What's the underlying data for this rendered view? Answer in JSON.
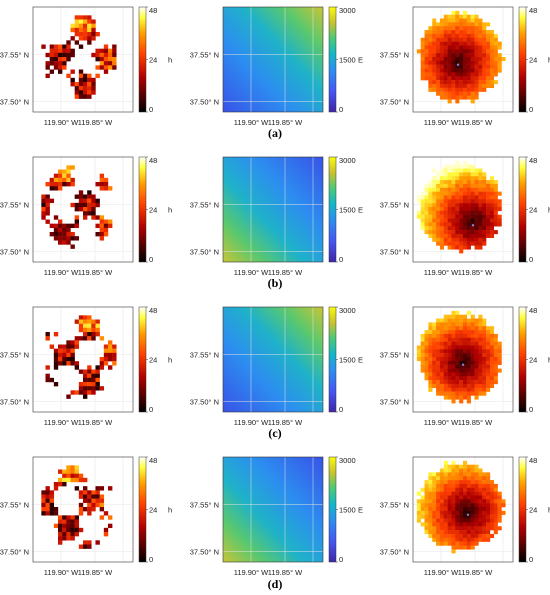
{
  "figure": {
    "captions": [
      "(a)",
      "(b)",
      "(c)",
      "(d)"
    ]
  },
  "chart_data": [
    {
      "type": "heatmap",
      "row": "a",
      "panel": "fire-arrival-map",
      "x_ticks": [
        "119.90° W",
        "119.85° W"
      ],
      "y_ticks": [
        "37.55° N",
        "37.50° N"
      ],
      "colorbar": {
        "label": "h",
        "ticks": [
          0,
          24,
          48
        ],
        "range": [
          0,
          48
        ],
        "colormap": "hot"
      }
    },
    {
      "type": "heatmap",
      "row": "a",
      "panel": "ignition-energy-field",
      "x_ticks": [
        "119.90° W",
        "119.85° W"
      ],
      "y_ticks": [
        "37.55° N",
        "37.50° N"
      ],
      "colorbar": {
        "label": "E",
        "ticks": [
          0,
          1500,
          3000
        ],
        "range": [
          0,
          3000
        ],
        "colormap": "parula"
      },
      "gradient_direction": "increasing-to-top-right"
    },
    {
      "type": "heatmap",
      "row": "a",
      "panel": "fire-spread-estimate",
      "x_ticks": [
        "119.90° W",
        "119.85° W"
      ],
      "y_ticks": [
        "37.55° N",
        "37.50° N"
      ],
      "colorbar": {
        "label": "h",
        "ticks": [
          0,
          24,
          48
        ],
        "range": [
          0,
          48
        ],
        "colormap": "hot"
      }
    },
    {
      "type": "heatmap",
      "row": "b",
      "panel": "fire-arrival-map",
      "x_ticks": [
        "119.90° W",
        "119.85° W"
      ],
      "y_ticks": [
        "37.55° N",
        "37.50° N"
      ],
      "colorbar": {
        "label": "h",
        "ticks": [
          0,
          24,
          48
        ],
        "range": [
          0,
          48
        ],
        "colormap": "hot"
      }
    },
    {
      "type": "heatmap",
      "row": "b",
      "panel": "ignition-energy-field",
      "x_ticks": [
        "119.90° W",
        "119.85° W"
      ],
      "y_ticks": [
        "37.55° N",
        "37.50° N"
      ],
      "colorbar": {
        "label": "E",
        "ticks": [
          0,
          1500,
          3000
        ],
        "range": [
          0,
          3000
        ],
        "colormap": "parula"
      },
      "gradient_direction": "increasing-to-bottom-left"
    },
    {
      "type": "heatmap",
      "row": "b",
      "panel": "fire-spread-estimate",
      "x_ticks": [
        "119.90° W",
        "119.85° W"
      ],
      "y_ticks": [
        "37.55° N",
        "37.50° N"
      ],
      "colorbar": {
        "label": "h",
        "ticks": [
          0,
          24,
          48
        ],
        "range": [
          0,
          48
        ],
        "colormap": "hot"
      }
    },
    {
      "type": "heatmap",
      "row": "c",
      "panel": "fire-arrival-map",
      "x_ticks": [
        "119.90° W",
        "119.85° W"
      ],
      "y_ticks": [
        "37.55° N",
        "37.50° N"
      ],
      "colorbar": {
        "label": "h",
        "ticks": [
          0,
          24,
          48
        ],
        "range": [
          0,
          48
        ],
        "colormap": "hot"
      }
    },
    {
      "type": "heatmap",
      "row": "c",
      "panel": "ignition-energy-field",
      "x_ticks": [
        "119.90° W",
        "119.85° W"
      ],
      "y_ticks": [
        "37.55° N",
        "37.50° N"
      ],
      "colorbar": {
        "label": "E",
        "ticks": [
          0,
          1500,
          3000
        ],
        "range": [
          0,
          3000
        ],
        "colormap": "parula"
      },
      "gradient_direction": "increasing-to-top-right"
    },
    {
      "type": "heatmap",
      "row": "c",
      "panel": "fire-spread-estimate",
      "x_ticks": [
        "119.90° W",
        "119.85° W"
      ],
      "y_ticks": [
        "37.55° N",
        "37.50° N"
      ],
      "colorbar": {
        "label": "h",
        "ticks": [
          0,
          24,
          48
        ],
        "range": [
          0,
          48
        ],
        "colormap": "hot"
      }
    },
    {
      "type": "heatmap",
      "row": "d",
      "panel": "fire-arrival-map",
      "x_ticks": [
        "119.90° W",
        "119.85° W"
      ],
      "y_ticks": [
        "37.55° N",
        "37.50° N"
      ],
      "colorbar": {
        "label": "h",
        "ticks": [
          0,
          24,
          48
        ],
        "range": [
          0,
          48
        ],
        "colormap": "hot"
      }
    },
    {
      "type": "heatmap",
      "row": "d",
      "panel": "ignition-energy-field",
      "x_ticks": [
        "119.90° W",
        "119.85° W"
      ],
      "y_ticks": [
        "37.55° N",
        "37.50° N"
      ],
      "colorbar": {
        "label": "E",
        "ticks": [
          0,
          1500,
          3000
        ],
        "range": [
          0,
          3000
        ],
        "colormap": "parula"
      },
      "gradient_direction": "increasing-to-bottom-left"
    },
    {
      "type": "heatmap",
      "row": "d",
      "panel": "fire-spread-estimate",
      "x_ticks": [
        "119.90° W",
        "119.85° W"
      ],
      "y_ticks": [
        "37.55° N",
        "37.50° N"
      ],
      "colorbar": {
        "label": "h",
        "ticks": [
          0,
          24,
          48
        ],
        "range": [
          0,
          48
        ],
        "colormap": "hot"
      }
    }
  ]
}
